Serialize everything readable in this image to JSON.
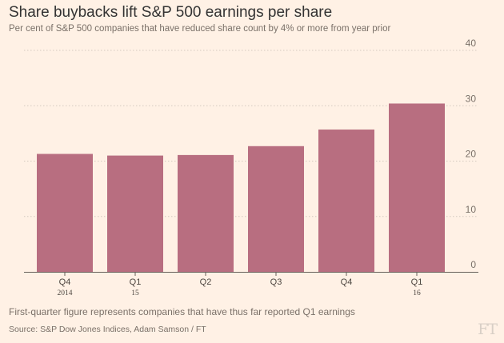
{
  "header": {
    "title": "Share buybacks lift S&P 500 earnings per share",
    "subtitle": "Per cent of S&P 500 companies that have reduced share count by 4% or more from year prior"
  },
  "footer": {
    "note": "First-quarter figure represents companies that have thus far reported Q1 earnings",
    "source": "Source: S&P Dow Jones Indices, Adam Samson / FT",
    "logo": "FT"
  },
  "colors": {
    "background": "#fff1e5",
    "bar": "#b86e80",
    "grid": "#d4c9bf",
    "axis": "#66605a"
  },
  "chart_data": {
    "type": "bar",
    "categories": [
      "Q4",
      "Q1",
      "Q2",
      "Q3",
      "Q4",
      "Q1"
    ],
    "category_sublabels": [
      "2014",
      "15",
      "",
      "",
      "",
      "16"
    ],
    "values": [
      21.3,
      21.0,
      21.1,
      22.7,
      25.7,
      30.4
    ],
    "ylim": [
      0,
      40
    ],
    "yticks": [
      0,
      10,
      20,
      30,
      40
    ],
    "y_axis_side": "right",
    "grid": true,
    "title": "Share buybacks lift S&P 500 earnings per share",
    "xlabel": "",
    "ylabel": ""
  }
}
